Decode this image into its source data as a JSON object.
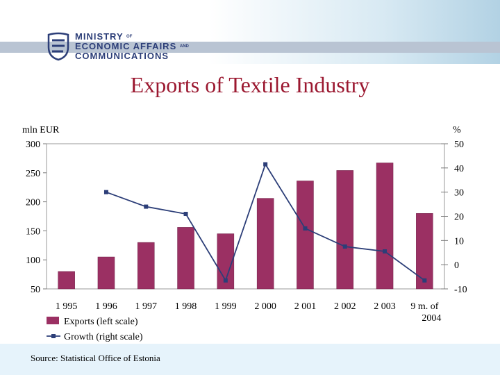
{
  "header": {
    "ministry_line1": "MINISTRY",
    "ministry_of": "OF",
    "ministry_line2": "ECONOMIC AFFAIRS",
    "ministry_and": "AND",
    "ministry_line3": "COMMUNICATIONS"
  },
  "slide": {
    "title": "Exports of Textile Industry",
    "source": "Source: Statistical Office of Estonia"
  },
  "colors": {
    "title": "#9b1830",
    "bar": "#9b3063",
    "line": "#2c3e78",
    "footer": "#e6f3fb"
  },
  "chart_data": {
    "type": "bar",
    "categories": [
      "1 995",
      "1 996",
      "1 997",
      "1 998",
      "1 999",
      "2 000",
      "2 001",
      "2 002",
      "2 003",
      "9 m. of 2004"
    ],
    "category_lines": [
      [
        "1 995"
      ],
      [
        "1 996"
      ],
      [
        "1 997"
      ],
      [
        "1 998"
      ],
      [
        "1 999"
      ],
      [
        "2 000"
      ],
      [
        "2 001"
      ],
      [
        "2 002"
      ],
      [
        "2 003"
      ],
      [
        "9 m. of",
        "2004"
      ]
    ],
    "series": [
      {
        "name": "Exports (left scale)",
        "type": "bar",
        "axis": "left",
        "values": [
          80,
          105,
          130,
          156,
          145,
          206,
          236,
          254,
          267,
          180
        ]
      },
      {
        "name": "Growth (right scale)",
        "type": "line",
        "axis": "right",
        "values": [
          null,
          30,
          24,
          21,
          -6.5,
          41.5,
          15,
          7.5,
          5.5,
          -6.5
        ]
      }
    ],
    "left_axis": {
      "label": "mln EUR",
      "ylim": [
        50,
        300
      ],
      "ticks": [
        300,
        250,
        200,
        150,
        100,
        50
      ]
    },
    "right_axis": {
      "label": "%",
      "ylim": [
        -10,
        50
      ],
      "ticks": [
        50,
        40,
        30,
        20,
        10,
        0,
        -10
      ]
    },
    "legend_position": "bottom-left",
    "grid": false
  }
}
